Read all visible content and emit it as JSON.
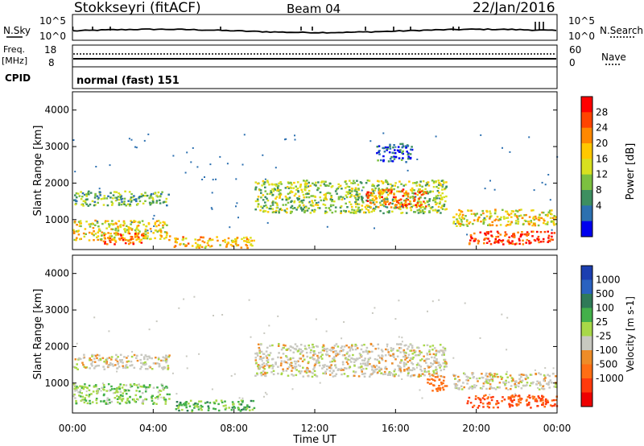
{
  "header": {
    "station": "Stokkseyri (fitACF)",
    "beam": "Beam 04",
    "date": "22/Jan/2016"
  },
  "noise_panel": {
    "left_label": "N.Sky",
    "right_label": "N.Search",
    "left_ticks": [
      "10^5",
      "10^0"
    ],
    "right_ticks": [
      "10^5",
      "10^0"
    ]
  },
  "freq_panel": {
    "left_label_1": "Freq.",
    "left_label_2": "[MHz]",
    "right_label": "Nave",
    "left_ticks": [
      "18",
      "8"
    ],
    "right_ticks": [
      "60",
      "0"
    ]
  },
  "cpid": {
    "label": "CPID",
    "value": "normal (fast) 151"
  },
  "x_axis": {
    "label": "Time UT",
    "ticks": [
      "00:00",
      "04:00",
      "08:00",
      "12:00",
      "16:00",
      "20:00",
      "00:00"
    ],
    "tick_hours": [
      0,
      4,
      8,
      12,
      16,
      20,
      24
    ]
  },
  "power_panel": {
    "ylabel": "Slant Range [km]",
    "yticks": [
      1000,
      2000,
      3000,
      4000
    ],
    "ylim": [
      180,
      4500
    ],
    "colorbar_label": "Power [dB]",
    "colorbar_ticks": [
      "28",
      "24",
      "20",
      "16",
      "12",
      "8",
      "4"
    ],
    "colors": [
      "#ff0000",
      "#ff4400",
      "#ff8800",
      "#ffc800",
      "#d8e020",
      "#7cc040",
      "#3d8f60",
      "#2c70b0",
      "#0000ee"
    ]
  },
  "velocity_panel": {
    "ylabel": "Slant Range [km]",
    "yticks": [
      1000,
      2000,
      3000,
      4000
    ],
    "ylim": [
      180,
      4500
    ],
    "colorbar_label": "Velocity [m s-1]",
    "colorbar_ticks": [
      "1000",
      "500",
      "100",
      "25",
      "-25",
      "-100",
      "-500",
      "-1000"
    ],
    "colors": [
      "#1c3fb0",
      "#2a62c0",
      "#2f7a58",
      "#43b04a",
      "#a8d848",
      "#c8c8c0",
      "#ee8c28",
      "#ff6e14",
      "#ff3a0c",
      "#ee0000"
    ]
  },
  "chart_data": [
    {
      "type": "heatmap",
      "title": "Power [dB]",
      "xlabel": "Time UT",
      "ylabel": "Slant Range [km]",
      "xlim": [
        0,
        24
      ],
      "ylim": [
        180,
        4500
      ],
      "regions": [
        {
          "t": [
            0,
            4.8
          ],
          "r": [
            1400,
            1800
          ],
          "power": 12
        },
        {
          "t": [
            0,
            4.8
          ],
          "r": [
            450,
            1000
          ],
          "power": 18
        },
        {
          "t": [
            1.5,
            3.5
          ],
          "r": [
            350,
            650
          ],
          "power": 26
        },
        {
          "t": [
            5,
            9
          ],
          "r": [
            250,
            550
          ],
          "power": 20
        },
        {
          "t": [
            9,
            18.5
          ],
          "r": [
            1200,
            2100
          ],
          "power": 14
        },
        {
          "t": [
            14.5,
            17.5
          ],
          "r": [
            1350,
            1850
          ],
          "power": 24
        },
        {
          "t": [
            15,
            16.8
          ],
          "r": [
            2600,
            3100
          ],
          "power": 6
        },
        {
          "t": [
            18.8,
            24
          ],
          "r": [
            850,
            1300
          ],
          "power": 18
        },
        {
          "t": [
            19.5,
            24
          ],
          "r": [
            350,
            700
          ],
          "power": 28
        }
      ]
    },
    {
      "type": "heatmap",
      "title": "Velocity",
      "xlabel": "Time UT",
      "ylabel": "Slant Range [km]",
      "xlim": [
        0,
        24
      ],
      "ylim": [
        180,
        4500
      ],
      "regions": [
        {
          "t": [
            0,
            4.8
          ],
          "r": [
            1400,
            1800
          ],
          "velocity": 0
        },
        {
          "t": [
            0,
            4.8
          ],
          "r": [
            450,
            1000
          ],
          "velocity": 50
        },
        {
          "t": [
            5,
            9
          ],
          "r": [
            250,
            550
          ],
          "velocity": 80
        },
        {
          "t": [
            9,
            18.5
          ],
          "r": [
            1200,
            2100
          ],
          "velocity": 0
        },
        {
          "t": [
            17.5,
            18.5
          ],
          "r": [
            800,
            1200
          ],
          "velocity": -200
        },
        {
          "t": [
            18.8,
            24
          ],
          "r": [
            850,
            1300
          ],
          "velocity": 0
        },
        {
          "t": [
            19.5,
            24
          ],
          "r": [
            350,
            700
          ],
          "velocity": -300
        }
      ]
    }
  ]
}
